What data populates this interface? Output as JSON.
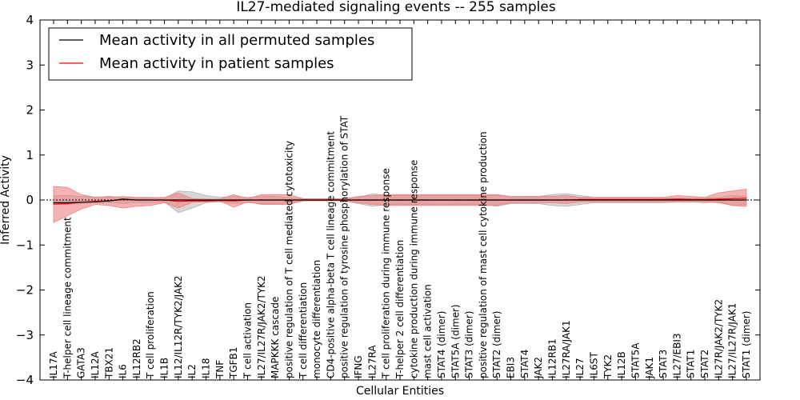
{
  "chart_data": {
    "type": "line",
    "title": "IL27-mediated signaling events -- 255 samples",
    "xlabel": "Cellular Entities",
    "ylabel": "Inferred Activity",
    "ylim": [
      -4,
      4
    ],
    "yticks": [
      4,
      3,
      2,
      1,
      0,
      -1,
      -2,
      -3,
      -4
    ],
    "ytick_labels": [
      "4",
      "3",
      "2",
      "1",
      "0",
      "−1",
      "−2",
      "−3",
      "−4"
    ],
    "legend_location": "top-left",
    "colors": {
      "permuted": "#000000",
      "patient": "#ff0000",
      "patient_band": "#f08080",
      "permuted_band": "#b0b0b0"
    },
    "categories": [
      "IL17A",
      "T-helper cell lineage commitment",
      "GATA3",
      "IL12A",
      "TBX21",
      "IL6",
      "IL12RB2",
      "T cell proliferation",
      "IL1B",
      "IL12/IL12R/TYK2/JAK2",
      "IL2",
      "IL18",
      "TNF",
      "TGFB1",
      "T cell activation",
      "IL27/IL27R/JAK2/TYK2",
      "MAPKKK cascade",
      "positive regulation of T cell mediated cytotoxicity",
      "T cell differentiation",
      "monocyte differentiation",
      "CD4-positive alpha-beta T cell lineage commitment",
      "positive regulation of tyrosine phosphorylation of STAT",
      "IFNG",
      "IL27RA",
      "T cell proliferation during immune response",
      "T-helper 2 cell differentiation",
      "cytokine production during immune response",
      "mast cell activation",
      "STAT4 (dimer)",
      "STAT5A (dimer)",
      "STAT3 (dimer)",
      "positive regulation of mast cell cytokine production",
      "STAT2 (dimer)",
      "EBI3",
      "STAT4",
      "JAK2",
      "IL12RB1",
      "IL27RA/JAK1",
      "IL27",
      "IL6ST",
      "TYK2",
      "IL12B",
      "STAT5A",
      "JAK1",
      "STAT3",
      "IL27/EBI3",
      "STAT1",
      "STAT2",
      "IL27R/JAK2/TYK2",
      "IL27/IL27R/JAK1",
      "STAT1 (dimer)"
    ],
    "series": [
      {
        "name": "Mean activity in all permuted samples",
        "values": [
          -0.06,
          -0.06,
          -0.05,
          -0.04,
          -0.02,
          0.02,
          0,
          0,
          0,
          0,
          0,
          0,
          0,
          0,
          0,
          0,
          0,
          0,
          0,
          0,
          0,
          0,
          0,
          0,
          0,
          0,
          0,
          0,
          0,
          0,
          0,
          0,
          0,
          0,
          0,
          0,
          0,
          0,
          0,
          0,
          0,
          0,
          0,
          0,
          0,
          0,
          0,
          0,
          0,
          0,
          0
        ],
        "lower": [
          -0.1,
          -0.1,
          -0.08,
          -0.07,
          -0.06,
          -0.08,
          -0.06,
          -0.06,
          -0.04,
          -0.28,
          -0.18,
          -0.06,
          -0.04,
          -0.08,
          -0.06,
          -0.08,
          -0.08,
          -0.06,
          -0.02,
          -0.02,
          -0.02,
          -0.02,
          -0.08,
          -0.14,
          -0.1,
          -0.1,
          -0.1,
          -0.1,
          -0.1,
          -0.1,
          -0.1,
          -0.1,
          -0.14,
          -0.08,
          -0.08,
          -0.08,
          -0.12,
          -0.14,
          -0.1,
          -0.06,
          -0.06,
          -0.06,
          -0.06,
          -0.06,
          -0.06,
          -0.04,
          -0.04,
          -0.06,
          -0.04,
          -0.12,
          -0.1
        ],
        "upper": [
          0.1,
          0.1,
          0.08,
          0.07,
          0.06,
          0.08,
          0.06,
          0.06,
          0.04,
          0.2,
          0.18,
          0.1,
          0.06,
          0.08,
          0.06,
          0.08,
          0.08,
          0.06,
          0.02,
          0.02,
          0.02,
          0.02,
          0.06,
          0.14,
          0.1,
          0.1,
          0.1,
          0.1,
          0.1,
          0.1,
          0.1,
          0.1,
          0.1,
          0.06,
          0.06,
          0.08,
          0.12,
          0.14,
          0.1,
          0.06,
          0.06,
          0.06,
          0.06,
          0.06,
          0.04,
          0.04,
          0.04,
          0.04,
          0.06,
          0.1,
          0.08
        ]
      },
      {
        "name": "Mean activity in patient samples",
        "values": [
          -0.09,
          -0.08,
          -0.05,
          -0.03,
          -0.02,
          0.01,
          0,
          0,
          0,
          -0.03,
          -0.02,
          -0.02,
          -0.01,
          -0.02,
          0,
          0,
          0,
          0,
          0,
          0,
          0,
          0,
          0,
          0,
          0,
          0,
          0,
          0,
          0,
          0,
          0,
          0,
          0,
          0,
          0,
          0,
          0,
          0,
          0.01,
          0.01,
          0.01,
          0.01,
          0.01,
          0.01,
          0.01,
          0.02,
          0.01,
          0.01,
          0.02,
          0.03,
          0.04
        ],
        "lower": [
          -0.5,
          -0.35,
          -0.2,
          -0.1,
          -0.12,
          -0.18,
          -0.14,
          -0.12,
          -0.06,
          -0.18,
          -0.05,
          -0.04,
          -0.02,
          -0.16,
          -0.04,
          -0.1,
          -0.1,
          -0.1,
          -0.02,
          -0.02,
          -0.02,
          -0.02,
          -0.06,
          -0.1,
          -0.12,
          -0.12,
          -0.12,
          -0.12,
          -0.12,
          -0.12,
          -0.12,
          -0.12,
          -0.12,
          -0.06,
          -0.06,
          -0.06,
          -0.06,
          -0.08,
          -0.04,
          -0.04,
          -0.04,
          -0.04,
          -0.04,
          -0.04,
          -0.04,
          -0.04,
          -0.04,
          -0.04,
          -0.06,
          -0.12,
          -0.14
        ],
        "upper": [
          0.3,
          0.28,
          0.12,
          0.06,
          0.08,
          0.06,
          0.05,
          0.05,
          0.06,
          0.16,
          0.03,
          0.02,
          0.02,
          0.12,
          0.03,
          0.12,
          0.12,
          0.12,
          0.03,
          0.03,
          0.03,
          0.03,
          0.08,
          0.1,
          0.12,
          0.12,
          0.12,
          0.12,
          0.12,
          0.12,
          0.12,
          0.12,
          0.12,
          0.08,
          0.08,
          0.08,
          0.08,
          0.1,
          0.06,
          0.06,
          0.06,
          0.06,
          0.06,
          0.06,
          0.06,
          0.1,
          0.08,
          0.06,
          0.16,
          0.2,
          0.24
        ]
      }
    ]
  }
}
